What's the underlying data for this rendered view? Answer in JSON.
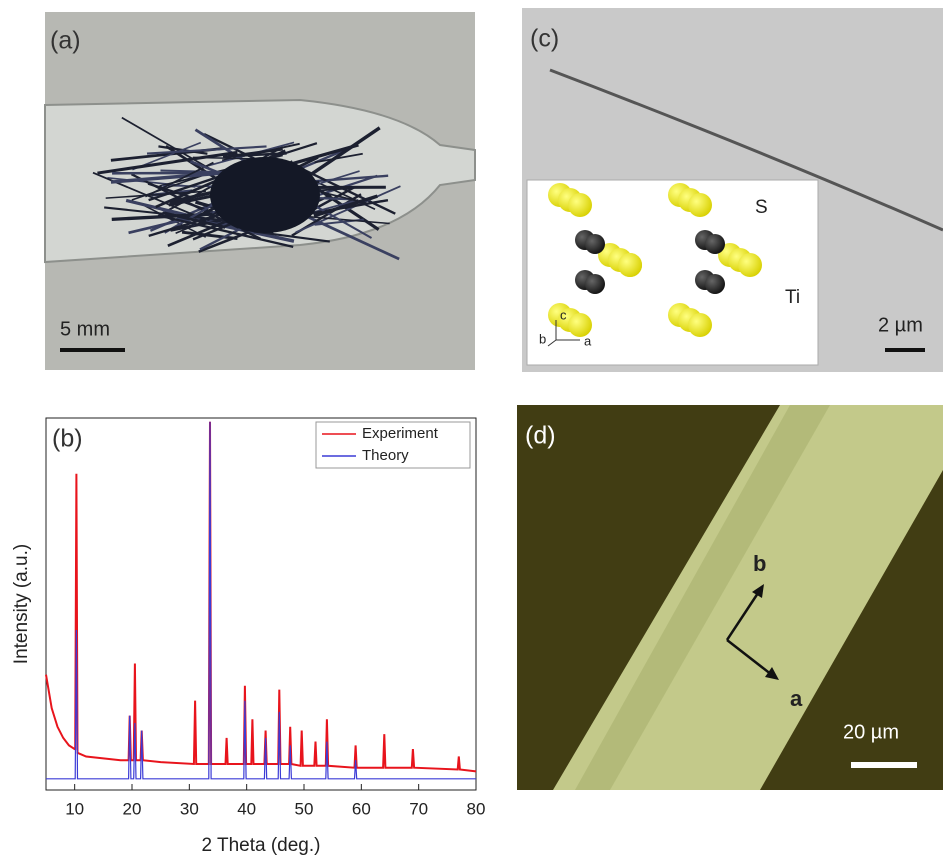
{
  "panels": {
    "a": {
      "label": "(a)",
      "scale": "5 mm"
    },
    "c": {
      "label": "(c)",
      "scale": "2 µm",
      "inset": {
        "atom1": "S",
        "atom2": "Ti",
        "axis_c": "c",
        "axis_b": "b",
        "axis_a": "a"
      }
    },
    "d": {
      "label": "(d)",
      "axis_b": "b",
      "axis_a": "a",
      "scale": "20 µm"
    }
  },
  "chart_data": {
    "type": "line",
    "panel_label": "(b)",
    "x_label": "2 Theta (deg.)",
    "y_label": "Intensity (a.u.)",
    "xlim": [
      5,
      80
    ],
    "xticks": [
      10,
      20,
      30,
      40,
      50,
      60,
      70,
      80
    ],
    "ylim": [
      0,
      100
    ],
    "legend": "upper right",
    "series": [
      {
        "name": "Experiment",
        "color": "#e8141c",
        "x": [
          5,
          6,
          7,
          8,
          9,
          10,
          10.1,
          10.3,
          10.5,
          12,
          15,
          18,
          19.4,
          19.6,
          19.8,
          20.3,
          20.5,
          20.7,
          21.5,
          21.7,
          21.9,
          25,
          30.8,
          31,
          31.2,
          33.4,
          33.6,
          33.8,
          36.3,
          36.5,
          36.7,
          39.5,
          39.7,
          39.9,
          40.8,
          41,
          41.2,
          43.1,
          43.3,
          43.5,
          45.5,
          45.7,
          45.9,
          47.4,
          47.6,
          47.8,
          49.4,
          49.6,
          49.8,
          51.8,
          52,
          52.2,
          53.8,
          54,
          54.2,
          58.8,
          59,
          59.2,
          63.8,
          64,
          64.2,
          68.8,
          69,
          69.2,
          76.8,
          77,
          77.2,
          80
        ],
        "values": [
          31,
          22,
          17,
          14,
          12,
          11,
          11,
          85,
          10,
          9,
          8.5,
          8,
          8,
          20,
          8,
          8,
          34,
          8,
          8,
          16,
          8,
          7.5,
          7,
          24,
          7,
          7,
          99,
          7,
          7,
          14,
          7,
          7,
          28,
          7,
          7,
          19,
          7,
          7,
          16,
          7,
          7,
          27,
          7,
          7,
          17,
          7,
          6.5,
          16,
          6.5,
          6.5,
          13,
          6.5,
          6.5,
          19,
          6.5,
          6,
          12,
          6,
          6,
          15,
          6,
          6,
          11,
          6,
          5.5,
          9,
          5.5,
          5
        ]
      },
      {
        "name": "Theory",
        "color": "#3b3bd6",
        "x": [
          5,
          10.1,
          10.3,
          10.5,
          19.4,
          19.6,
          19.8,
          20.3,
          20.5,
          20.7,
          21.5,
          21.7,
          21.9,
          33.4,
          33.6,
          33.8,
          39.5,
          39.7,
          39.9,
          43.1,
          43.3,
          43.5,
          45.5,
          45.7,
          45.9,
          47.4,
          47.6,
          47.8,
          53.8,
          54,
          54.2,
          58.8,
          59,
          59.2,
          80
        ],
        "values": [
          3,
          3,
          43,
          3,
          3,
          20,
          3,
          3,
          18,
          3,
          3,
          16,
          3,
          3,
          99,
          3,
          3,
          24,
          3,
          3,
          14,
          3,
          3,
          21,
          3,
          3,
          12,
          3,
          3,
          13,
          3,
          3,
          8,
          3,
          3
        ]
      }
    ]
  }
}
